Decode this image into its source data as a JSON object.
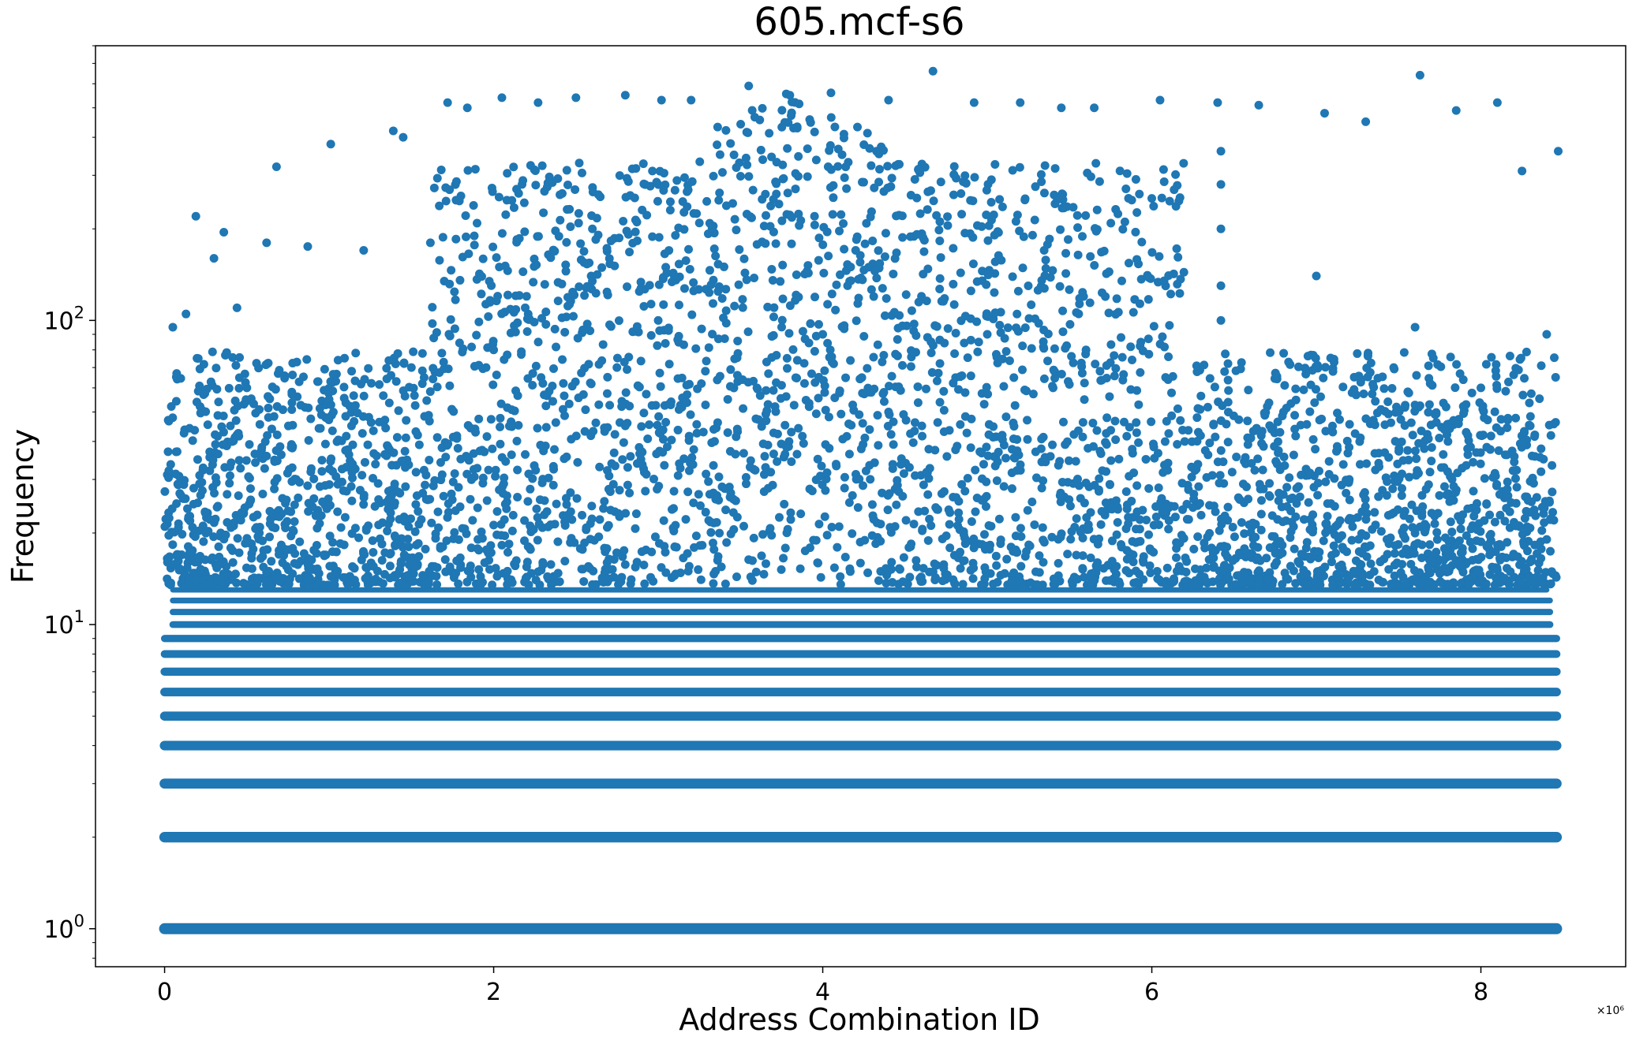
{
  "chart_data": {
    "type": "scatter",
    "title": "605.mcf-s6",
    "xlabel": "Address Combination ID",
    "ylabel": "Frequency",
    "x_scale_label": "×10⁶",
    "x_scale": "linear",
    "y_scale": "log",
    "xlim": [
      -0.42,
      8.88
    ],
    "ylim": [
      0.75,
      800
    ],
    "grid": false,
    "legend": "none",
    "x_ticks": [
      0,
      2,
      4,
      6,
      8
    ],
    "x_tick_labels": [
      "0",
      "2",
      "4",
      "6",
      "8"
    ],
    "y_ticks": [
      1,
      10,
      100
    ],
    "y_tick_labels": [
      {
        "base": "10",
        "exp": "0"
      },
      {
        "base": "10",
        "exp": "1"
      },
      {
        "base": "10",
        "exp": "2"
      }
    ],
    "series": [
      {
        "color": "#1f77b4",
        "x_range": [
          0,
          8.46
        ],
        "description_bands": [
          {
            "y": 1,
            "x": [
              0,
              8.46
            ]
          },
          {
            "y": 2,
            "x": [
              0,
              8.46
            ]
          },
          {
            "y": 3,
            "x": [
              0,
              8.46
            ]
          },
          {
            "y": 4,
            "x": [
              0,
              8.46
            ]
          },
          {
            "y": 5,
            "x": [
              0,
              8.46
            ]
          },
          {
            "y": 6,
            "x": [
              0,
              8.46
            ]
          },
          {
            "y": 7,
            "x": [
              0,
              8.46
            ]
          },
          {
            "y": 8,
            "x": [
              0,
              8.46
            ]
          },
          {
            "y": 9,
            "x": [
              0,
              8.46
            ]
          },
          {
            "y": 10,
            "x": [
              0.05,
              8.42
            ]
          },
          {
            "y": 11,
            "x": [
              0.05,
              8.42
            ]
          },
          {
            "y": 12,
            "x": [
              0.05,
              8.42
            ]
          },
          {
            "y": 13,
            "x": [
              0.05,
              8.4
            ]
          }
        ],
        "sample_points": [
          [
            0.05,
            95
          ],
          [
            0.13,
            105
          ],
          [
            0.19,
            220
          ],
          [
            0.3,
            160
          ],
          [
            0.36,
            195
          ],
          [
            0.44,
            110
          ],
          [
            0.5,
            60
          ],
          [
            0.62,
            180
          ],
          [
            0.68,
            320
          ],
          [
            0.87,
            175
          ],
          [
            1.01,
            380
          ],
          [
            1.21,
            170
          ],
          [
            1.39,
            420
          ],
          [
            1.45,
            400
          ],
          [
            1.72,
            520
          ],
          [
            1.84,
            500
          ],
          [
            2.05,
            540
          ],
          [
            2.27,
            520
          ],
          [
            2.5,
            540
          ],
          [
            2.8,
            550
          ],
          [
            3.02,
            530
          ],
          [
            3.2,
            530
          ],
          [
            3.55,
            590
          ],
          [
            3.8,
            550
          ],
          [
            4.05,
            560
          ],
          [
            4.4,
            530
          ],
          [
            4.67,
            660
          ],
          [
            4.92,
            520
          ],
          [
            5.2,
            520
          ],
          [
            5.45,
            500
          ],
          [
            5.65,
            500
          ],
          [
            6.05,
            530
          ],
          [
            6.4,
            520
          ],
          [
            6.65,
            510
          ],
          [
            7.05,
            480
          ],
          [
            7.3,
            450
          ],
          [
            7.63,
            640
          ],
          [
            7.85,
            490
          ],
          [
            8.1,
            520
          ],
          [
            8.25,
            310
          ],
          [
            8.47,
            360
          ],
          [
            3.7,
            250
          ],
          [
            3.95,
            220
          ],
          [
            4.2,
            170
          ],
          [
            3.4,
            150
          ],
          [
            4.6,
            120
          ],
          [
            2.6,
            200
          ],
          [
            2.2,
            120
          ],
          [
            5.0,
            90
          ],
          [
            5.6,
            80
          ],
          [
            6.42,
            360
          ],
          [
            6.42,
            280
          ],
          [
            6.42,
            200
          ],
          [
            6.42,
            130
          ],
          [
            6.42,
            100
          ],
          [
            7.0,
            140
          ],
          [
            7.6,
            95
          ],
          [
            8.0,
            60
          ],
          [
            8.4,
            90
          ],
          [
            1.0,
            55
          ],
          [
            1.5,
            70
          ],
          [
            0.4,
            45
          ],
          [
            2.0,
            80
          ],
          [
            3.0,
            100
          ],
          [
            4.0,
            90
          ],
          [
            5.4,
            60
          ],
          [
            6.8,
            50
          ],
          [
            7.8,
            40
          ],
          [
            8.3,
            45
          ],
          [
            0.8,
            30
          ],
          [
            1.8,
            35
          ],
          [
            2.8,
            45
          ],
          [
            3.6,
            60
          ],
          [
            4.4,
            50
          ],
          [
            5.8,
            35
          ],
          [
            6.2,
            40
          ],
          [
            7.2,
            30
          ]
        ]
      }
    ]
  }
}
